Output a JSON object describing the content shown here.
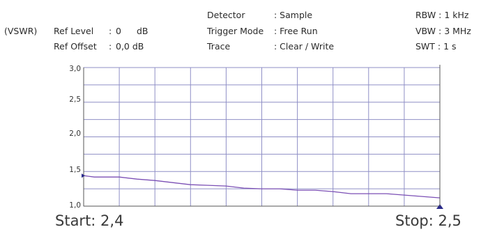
{
  "header": {
    "mode": "(VSWR)",
    "ref_level": {
      "label": "Ref Level",
      "sep": ":",
      "value": "0",
      "unit": "dB"
    },
    "ref_offset": {
      "label": "Ref Offset",
      "sep": ":",
      "value": "0,0 dB"
    },
    "detector": {
      "label": "Detector",
      "value": ": Sample"
    },
    "trigger_mode": {
      "label": "Trigger Mode",
      "value": ": Free Run"
    },
    "trace": {
      "label": "Trace",
      "value": ": Clear / Write"
    },
    "rbw": "RBW : 1 kHz",
    "vbw": "VBW : 3 MHz",
    "swt": "SWT : 1 s"
  },
  "footer": {
    "start": "Start: 2,4",
    "stop": "Stop: 2,5"
  },
  "chart_data": {
    "type": "line",
    "title": "",
    "xlabel": "",
    "ylabel": "",
    "xlim": [
      2.4,
      2.5
    ],
    "ylim": [
      1.0,
      3.0
    ],
    "y_ticks": [
      "3,0",
      "2,5",
      "2,0",
      "1,5",
      "1,0"
    ],
    "grid": true,
    "x_divisions": 10,
    "y_divisions": 8,
    "colors": {
      "trace": "#7b4fb5",
      "grid": "#8f8fc6",
      "marker": "#2a2a8a",
      "frame": "#555555"
    },
    "series": [
      {
        "x": [
          2.4,
          2.403,
          2.41,
          2.415,
          2.42,
          2.425,
          2.43,
          2.435,
          2.44,
          2.445,
          2.45,
          2.455,
          2.46,
          2.465,
          2.47,
          2.475,
          2.48,
          2.485,
          2.49,
          2.495,
          2.5
        ],
        "values": [
          1.44,
          1.42,
          1.42,
          1.39,
          1.37,
          1.34,
          1.31,
          1.3,
          1.29,
          1.26,
          1.25,
          1.25,
          1.23,
          1.23,
          1.21,
          1.18,
          1.18,
          1.18,
          1.16,
          1.14,
          1.12
        ]
      }
    ]
  }
}
